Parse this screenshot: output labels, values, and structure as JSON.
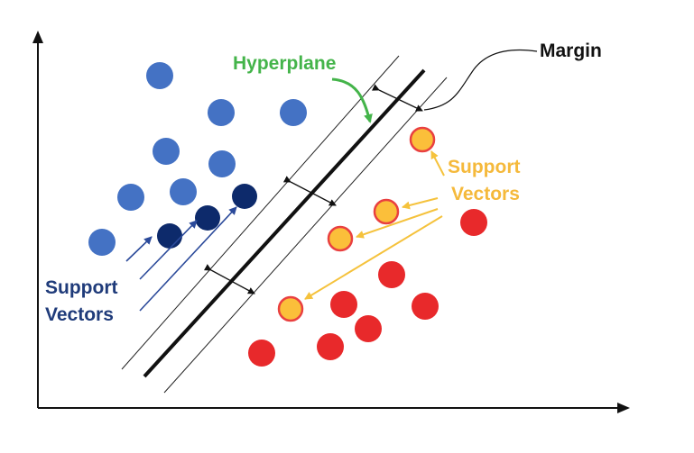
{
  "figure": {
    "hyperplane_label": "Hyperplane",
    "margin_label": "Margin",
    "support_vectors_right": {
      "line1": "Support",
      "line2": "Vectors"
    },
    "support_vectors_left": {
      "line1": "Support",
      "line2": "Vectors"
    }
  },
  "colors": {
    "class_blue": "#4472c4",
    "support_blue": "#0d2a6b",
    "class_red": "#e8292b",
    "support_fill": "#fbbf3a",
    "support_stroke": "#e94040",
    "hyperplane_label": "#44b44a",
    "support_label_right": "#f5b93b",
    "support_label_left": "#1f3b7a",
    "arrow_blue": "#2b4a9a",
    "arrow_yellow": "#f5c23c",
    "axis": "#111111"
  }
}
